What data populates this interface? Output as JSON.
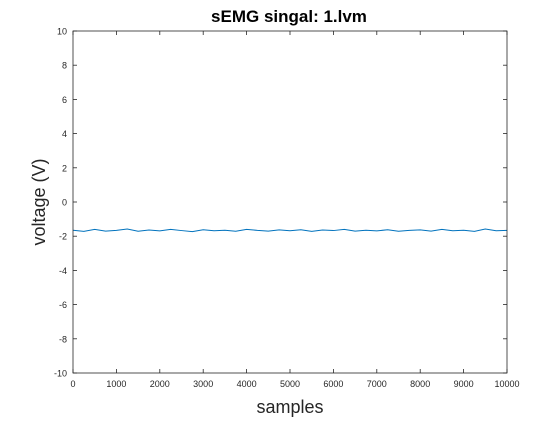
{
  "chart_data": {
    "type": "line",
    "title": "sEMG singal: 1.lvm",
    "xlabel": "samples",
    "ylabel": "voltage (V)",
    "xlim": [
      0,
      10000
    ],
    "ylim": [
      -10,
      10
    ],
    "x_ticks": [
      0,
      1000,
      2000,
      3000,
      4000,
      5000,
      6000,
      7000,
      8000,
      9000,
      10000
    ],
    "y_ticks": [
      -10,
      -8,
      -6,
      -4,
      -2,
      0,
      2,
      4,
      6,
      8,
      10
    ],
    "grid": false,
    "line_color": "#0072BD",
    "series": [
      {
        "x": [
          0,
          250,
          500,
          750,
          1000,
          1250,
          1500,
          1750,
          2000,
          2250,
          2500,
          2750,
          3000,
          3250,
          3500,
          3750,
          4000,
          4250,
          4500,
          4750,
          5000,
          5250,
          5500,
          5750,
          6000,
          6250,
          6500,
          6750,
          7000,
          7250,
          7500,
          7750,
          8000,
          8250,
          8500,
          8750,
          9000,
          9250,
          9500,
          9750,
          10000
        ],
        "values": [
          -1.65,
          -1.72,
          -1.6,
          -1.7,
          -1.66,
          -1.58,
          -1.71,
          -1.64,
          -1.69,
          -1.6,
          -1.67,
          -1.73,
          -1.62,
          -1.68,
          -1.65,
          -1.71,
          -1.6,
          -1.66,
          -1.7,
          -1.63,
          -1.68,
          -1.62,
          -1.72,
          -1.64,
          -1.67,
          -1.6,
          -1.7,
          -1.65,
          -1.69,
          -1.62,
          -1.71,
          -1.66,
          -1.63,
          -1.7,
          -1.6,
          -1.68,
          -1.65,
          -1.72,
          -1.58,
          -1.68,
          -1.66
        ]
      }
    ]
  }
}
